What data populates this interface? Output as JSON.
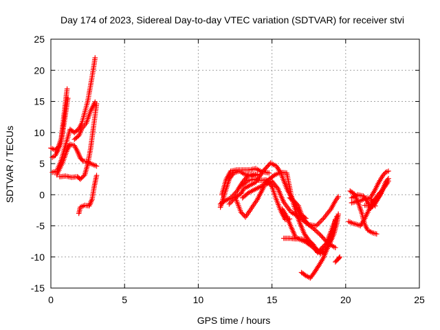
{
  "chart_data": {
    "type": "scatter",
    "title": "Day 174 of 2023, Sidereal Day-to-day VTEC variation (SDTVAR) for receiver stvi",
    "xlabel": "GPS time / hours",
    "ylabel": "SDTVAR / TECUs",
    "xlim": [
      0,
      25
    ],
    "ylim": [
      -15,
      25
    ],
    "xticks": [
      0,
      5,
      10,
      15,
      20,
      25
    ],
    "yticks": [
      -15,
      -10,
      -5,
      0,
      5,
      10,
      15,
      20,
      25
    ],
    "grid": true,
    "marker": "plus",
    "color": "#ff0000",
    "series": [
      {
        "points": [
          [
            0.0,
            7.5
          ],
          [
            0.3,
            7.2
          ],
          [
            0.5,
            7.6
          ],
          [
            0.7,
            9.0
          ],
          [
            0.9,
            13.0
          ],
          [
            1.1,
            17.0
          ]
        ]
      },
      {
        "points": [
          [
            0.1,
            6.0
          ],
          [
            0.3,
            6.3
          ],
          [
            0.5,
            7.2
          ],
          [
            0.7,
            8.5
          ],
          [
            0.9,
            11.5
          ],
          [
            1.15,
            15.5
          ]
        ]
      },
      {
        "points": [
          [
            0.1,
            3.6
          ],
          [
            0.4,
            3.8
          ],
          [
            0.7,
            5.5
          ],
          [
            1.0,
            8.0
          ],
          [
            1.3,
            10.5
          ],
          [
            1.6,
            10.0
          ],
          [
            1.9,
            10.6
          ],
          [
            2.1,
            11.5
          ],
          [
            2.5,
            15.0
          ],
          [
            2.8,
            19.0
          ],
          [
            3.0,
            22.0
          ]
        ]
      },
      {
        "points": [
          [
            0.4,
            3.2
          ],
          [
            0.8,
            5.2
          ],
          [
            1.1,
            7.2
          ],
          [
            1.3,
            8.1
          ],
          [
            1.6,
            7.9
          ],
          [
            1.8,
            7.0
          ],
          [
            2.0,
            5.9
          ],
          [
            2.2,
            5.4
          ],
          [
            2.4,
            5.4
          ],
          [
            2.7,
            5.0
          ],
          [
            3.1,
            4.6
          ]
        ]
      },
      {
        "points": [
          [
            1.6,
            8.9
          ],
          [
            1.9,
            9.5
          ],
          [
            2.1,
            10.6
          ],
          [
            2.4,
            11.5
          ],
          [
            2.7,
            13.5
          ],
          [
            3.0,
            14.9
          ]
        ]
      },
      {
        "points": [
          [
            0.6,
            2.9
          ],
          [
            1.0,
            3.0
          ],
          [
            1.4,
            2.8
          ],
          [
            1.8,
            2.9
          ],
          [
            2.0,
            2.5
          ],
          [
            2.3,
            3.2
          ],
          [
            2.5,
            4.9
          ],
          [
            2.7,
            7.5
          ],
          [
            2.9,
            11.0
          ],
          [
            3.1,
            14.6
          ]
        ]
      },
      {
        "points": [
          [
            1.9,
            -3.0
          ],
          [
            2.0,
            -2.0
          ],
          [
            2.3,
            -1.7
          ],
          [
            2.6,
            -1.8
          ],
          [
            2.8,
            -0.7
          ],
          [
            2.95,
            1.4
          ],
          [
            3.1,
            3.1
          ]
        ]
      },
      {
        "points": [
          [
            11.5,
            -2.0
          ],
          [
            11.7,
            -0.5
          ],
          [
            11.9,
            1.0
          ],
          [
            12.1,
            2.5
          ],
          [
            12.4,
            3.5
          ],
          [
            12.8,
            3.8
          ],
          [
            13.2,
            3.2
          ],
          [
            13.6,
            3.0
          ],
          [
            14.0,
            3.2
          ]
        ]
      },
      {
        "points": [
          [
            11.6,
            0.0
          ],
          [
            11.9,
            2.5
          ],
          [
            12.2,
            3.8
          ],
          [
            12.6,
            4.0
          ],
          [
            13.0,
            4.0
          ],
          [
            13.5,
            4.0
          ],
          [
            13.9,
            4.2
          ],
          [
            14.3,
            3.7
          ],
          [
            14.8,
            3.5
          ]
        ]
      },
      {
        "points": [
          [
            11.5,
            -1.5
          ],
          [
            11.8,
            -1.0
          ],
          [
            12.2,
            -0.5
          ],
          [
            12.6,
            0.5
          ],
          [
            13.0,
            2.0
          ],
          [
            13.4,
            3.2
          ],
          [
            14.0,
            3.3
          ]
        ]
      },
      {
        "points": [
          [
            12.1,
            -1.5
          ],
          [
            12.5,
            -0.5
          ],
          [
            12.9,
            0.2
          ],
          [
            13.1,
            1.0
          ],
          [
            13.5,
            1.5
          ],
          [
            13.9,
            2.0
          ],
          [
            14.4,
            3.8
          ],
          [
            14.9,
            5.1
          ],
          [
            15.3,
            4.6
          ],
          [
            15.6,
            3.5
          ],
          [
            16.0,
            1.0
          ],
          [
            16.5,
            -1.3
          ],
          [
            17.0,
            -3.5
          ],
          [
            17.5,
            -4.8
          ],
          [
            18.0,
            -5.0
          ],
          [
            18.5,
            -3.8
          ],
          [
            19.0,
            -2.3
          ],
          [
            19.3,
            -1.0
          ],
          [
            19.5,
            -0.3
          ]
        ]
      },
      {
        "points": [
          [
            12.5,
            -0.4
          ],
          [
            12.9,
            -2.8
          ],
          [
            13.2,
            -3.6
          ],
          [
            13.6,
            -2.2
          ],
          [
            14.0,
            -0.8
          ],
          [
            14.5,
            1.5
          ],
          [
            15.0,
            2.2
          ],
          [
            15.4,
            1.0
          ],
          [
            15.8,
            -1.2
          ],
          [
            16.3,
            -2.8
          ],
          [
            16.8,
            -3.5
          ],
          [
            17.3,
            -4.5
          ],
          [
            17.8,
            -5.4
          ],
          [
            18.3,
            -6.5
          ],
          [
            18.8,
            -7.8
          ],
          [
            19.3,
            -8.5
          ]
        ]
      },
      {
        "points": [
          [
            12.9,
            1.4
          ],
          [
            13.4,
            2.3
          ],
          [
            13.8,
            2.5
          ],
          [
            14.2,
            2.3
          ],
          [
            14.6,
            2.4
          ],
          [
            15.0,
            1.3
          ],
          [
            15.3,
            -0.8
          ],
          [
            15.6,
            -2.6
          ],
          [
            15.9,
            -4.0
          ],
          [
            16.2,
            -3.9
          ]
        ]
      },
      {
        "points": [
          [
            13.0,
            -0.5
          ],
          [
            13.4,
            0.3
          ],
          [
            13.8,
            0.8
          ],
          [
            14.3,
            1.4
          ],
          [
            14.8,
            2.5
          ],
          [
            15.2,
            3.2
          ],
          [
            15.6,
            3.6
          ],
          [
            16.0,
            3.5
          ],
          [
            16.3,
            0.0
          ],
          [
            16.6,
            -2.7
          ],
          [
            16.9,
            -4.6
          ],
          [
            17.2,
            -6.3
          ],
          [
            17.5,
            -7.3
          ],
          [
            17.8,
            -8.0
          ],
          [
            18.1,
            -9.3
          ],
          [
            18.4,
            -8.5
          ],
          [
            18.7,
            -7.8
          ],
          [
            19.0,
            -5.9
          ],
          [
            19.3,
            -4.1
          ]
        ]
      },
      {
        "points": [
          [
            15.7,
            -2.3
          ],
          [
            16.0,
            -3.5
          ],
          [
            16.3,
            -5.2
          ],
          [
            16.6,
            -6.8
          ],
          [
            16.9,
            -7.2
          ],
          [
            17.3,
            -7.6
          ],
          [
            17.7,
            -8.3
          ],
          [
            18.1,
            -9.2
          ],
          [
            18.5,
            -8.8
          ],
          [
            18.9,
            -7.5
          ],
          [
            19.4,
            -3.5
          ]
        ]
      },
      {
        "points": [
          [
            15.8,
            -7.0
          ],
          [
            16.2,
            -7.0
          ],
          [
            16.6,
            -7.1
          ],
          [
            17.0,
            -7.1
          ],
          [
            17.3,
            -7.3
          ],
          [
            17.6,
            -7.8
          ],
          [
            17.9,
            -8.4
          ],
          [
            18.3,
            -9.5
          ],
          [
            18.6,
            -9.1
          ],
          [
            18.9,
            -7.9
          ],
          [
            19.2,
            -6.3
          ],
          [
            19.4,
            -4.6
          ],
          [
            19.5,
            -3.1
          ]
        ]
      },
      {
        "points": [
          [
            17.0,
            -12.5
          ],
          [
            17.3,
            -13.0
          ],
          [
            17.6,
            -13.4
          ],
          [
            17.9,
            -12.4
          ],
          [
            18.2,
            -11.3
          ],
          [
            18.5,
            -10.1
          ],
          [
            18.8,
            -8.4
          ],
          [
            19.1,
            -6.3
          ],
          [
            19.3,
            -4.0
          ]
        ]
      },
      {
        "points": [
          [
            16.2,
            -0.5
          ],
          [
            16.5,
            -1.0
          ],
          [
            16.8,
            -1.8
          ],
          [
            17.0,
            -3.2
          ],
          [
            17.3,
            -3.8
          ]
        ]
      },
      {
        "points": [
          [
            19.3,
            -10.8
          ],
          [
            19.5,
            -10.3
          ],
          [
            19.6,
            -10.0
          ]
        ]
      },
      {
        "points": [
          [
            20.2,
            -4.3
          ],
          [
            20.5,
            -4.6
          ],
          [
            20.8,
            -4.8
          ],
          [
            21.0,
            -5.0
          ],
          [
            21.3,
            -3.8
          ],
          [
            21.6,
            -2.3
          ],
          [
            21.9,
            -1.0
          ],
          [
            22.2,
            0.0
          ],
          [
            22.5,
            0.8
          ],
          [
            22.8,
            1.8
          ]
        ]
      },
      {
        "points": [
          [
            20.3,
            0.6
          ],
          [
            20.6,
            0.1
          ],
          [
            20.9,
            -1.6
          ],
          [
            21.1,
            -3.0
          ],
          [
            21.3,
            -4.8
          ],
          [
            21.5,
            -5.7
          ],
          [
            21.8,
            -6.1
          ],
          [
            22.1,
            -6.3
          ]
        ]
      },
      {
        "points": [
          [
            20.4,
            -0.5
          ],
          [
            20.8,
            0.0
          ],
          [
            21.2,
            -0.2
          ],
          [
            21.5,
            -1.2
          ],
          [
            21.7,
            -2.2
          ],
          [
            22.0,
            -1.4
          ],
          [
            22.3,
            -0.2
          ],
          [
            22.6,
            1.2
          ],
          [
            22.9,
            2.2
          ]
        ]
      },
      {
        "points": [
          [
            20.4,
            -1.3
          ],
          [
            20.7,
            -1.1
          ],
          [
            21.0,
            -1.0
          ],
          [
            21.4,
            -0.5
          ],
          [
            21.7,
            -0.7
          ],
          [
            22.0,
            -1.8
          ]
        ]
      },
      {
        "points": [
          [
            21.7,
            -0.4
          ],
          [
            22.0,
            0.8
          ],
          [
            22.2,
            1.8
          ],
          [
            22.5,
            3.0
          ],
          [
            22.7,
            3.6
          ],
          [
            22.9,
            3.8
          ]
        ]
      },
      {
        "points": [
          [
            21.3,
            -1.7
          ],
          [
            21.7,
            -1.7
          ],
          [
            22.0,
            -1.2
          ],
          [
            22.4,
            0.2
          ],
          [
            22.7,
            2.0
          ],
          [
            22.9,
            2.6
          ]
        ]
      }
    ]
  }
}
